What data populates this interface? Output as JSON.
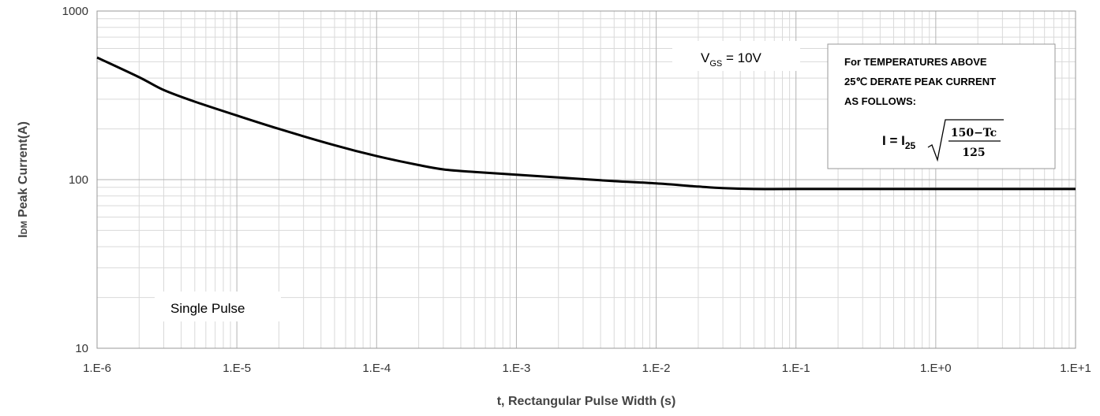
{
  "chart_data": {
    "type": "line",
    "xscale": "log",
    "yscale": "log",
    "xlim": [
      1e-06,
      10
    ],
    "ylim": [
      10,
      1000
    ],
    "xticks": [
      {
        "value": 1e-06,
        "label": "1.E-6"
      },
      {
        "value": 1e-05,
        "label": "1.E-5"
      },
      {
        "value": 0.0001,
        "label": "1.E-4"
      },
      {
        "value": 0.001,
        "label": "1.E-3"
      },
      {
        "value": 0.01,
        "label": "1.E-2"
      },
      {
        "value": 0.1,
        "label": "1.E-1"
      },
      {
        "value": 1,
        "label": "1.E+0"
      },
      {
        "value": 10,
        "label": "1.E+1"
      }
    ],
    "yticks": [
      {
        "value": 10,
        "label": "10"
      },
      {
        "value": 100,
        "label": "100"
      },
      {
        "value": 1000,
        "label": "1000"
      }
    ],
    "xlabel": "t, Rectangular Pulse Width (s)",
    "ylabel_main": "I",
    "ylabel_sub": "DM",
    "ylabel_rest": " Peak Current(A)",
    "grid": true,
    "series": [
      {
        "name": "Peak current",
        "x": [
          1e-06,
          2e-06,
          3e-06,
          5e-06,
          1e-05,
          2e-05,
          5e-05,
          0.0001,
          0.0002,
          0.0003,
          0.0005,
          0.001,
          0.002,
          0.005,
          0.01,
          0.02,
          0.03,
          0.05,
          0.1,
          1,
          10
        ],
        "y": [
          530,
          405,
          340,
          290,
          240,
          200,
          160,
          138,
          122,
          115,
          111,
          107,
          103,
          98,
          95,
          91,
          89,
          88,
          88,
          88,
          88
        ]
      }
    ],
    "annotations": {
      "vgs_main": "V",
      "vgs_sub": "GS",
      "vgs_rest": " = 10V",
      "pulse": "Single Pulse"
    },
    "note": {
      "lines": [
        "For TEMPERATURES ABOVE",
        "25℃ DERATE PEAK CURRENT",
        "AS FOLLOWS:"
      ],
      "formula_lhs": "I = I",
      "formula_sub": "25",
      "numerator": "150−Tc",
      "denominator": "125"
    }
  }
}
